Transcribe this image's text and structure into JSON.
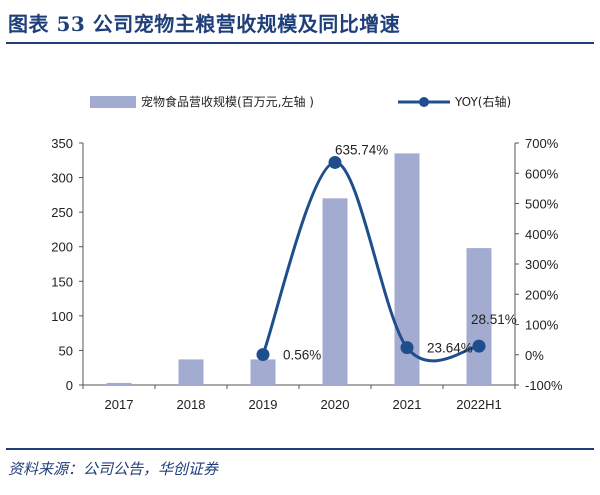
{
  "header": {
    "figure_title": "图表 53 公司宠物主粮营收规模及同比增速"
  },
  "footer": {
    "source": "资料来源：公司公告，华创证券"
  },
  "chart_data": {
    "type": "bar",
    "categories": [
      "2017",
      "2018",
      "2019",
      "2020",
      "2021",
      "2022H1"
    ],
    "series": [
      {
        "name": "宠物食品营收规模(百万元,左轴 )",
        "type": "bar",
        "axis": "left",
        "color": "#a4abd0",
        "values": [
          3,
          37,
          37,
          270,
          335,
          198
        ]
      },
      {
        "name": "YOY(右轴)",
        "type": "line",
        "axis": "right",
        "color": "#1f4e8c",
        "values": [
          null,
          null,
          0.56,
          635.74,
          23.64,
          28.51
        ],
        "labels": [
          "",
          "",
          "0.56%",
          "635.74%",
          "23.64%",
          "28.51%"
        ]
      }
    ],
    "y_left": {
      "min": 0,
      "max": 350,
      "ticks": [
        "0",
        "50",
        "100",
        "150",
        "200",
        "250",
        "300",
        "350"
      ]
    },
    "y_right": {
      "min": -100,
      "max": 700,
      "ticks": [
        "-100%",
        "0%",
        "100%",
        "200%",
        "300%",
        "400%",
        "500%",
        "600%",
        "700%"
      ]
    },
    "legend_position": "top",
    "grid": false
  }
}
